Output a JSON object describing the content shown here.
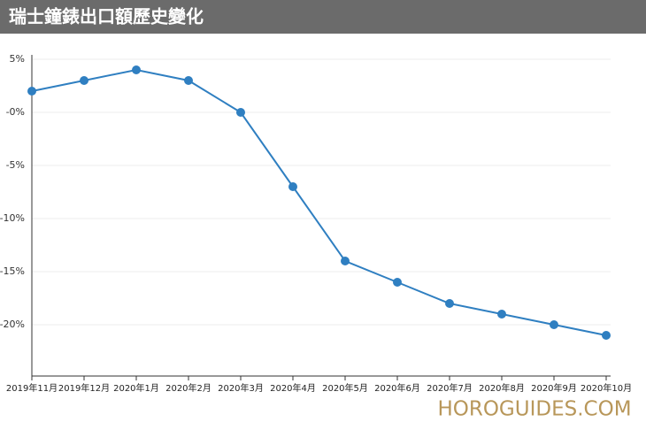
{
  "chart_data": {
    "type": "line",
    "title": "瑞士鐘錶出口額歷史變化",
    "categories": [
      "2019年11月",
      "2019年12月",
      "2020年1月",
      "2020年2月",
      "2020年3月",
      "2020年4月",
      "2020年5月",
      "2020年6月",
      "2020年7月",
      "2020年8月",
      "2020年9月",
      "2020年10月"
    ],
    "values": [
      2,
      3,
      4,
      3,
      0,
      -7,
      -14,
      -16,
      -18,
      -19,
      -20,
      -21
    ],
    "color": "#2f7fc1",
    "ylim": [
      -25,
      5
    ],
    "yticks": [
      {
        "value": 5,
        "label": "5%"
      },
      {
        "value": 0,
        "label": "-0%"
      },
      {
        "value": -5,
        "label": "-5%"
      },
      {
        "value": -10,
        "label": "-10%"
      },
      {
        "value": -15,
        "label": "-15%"
      },
      {
        "value": -20,
        "label": "-20%"
      }
    ],
    "grid": true,
    "watermark": "HOROGUIDES.COM"
  }
}
